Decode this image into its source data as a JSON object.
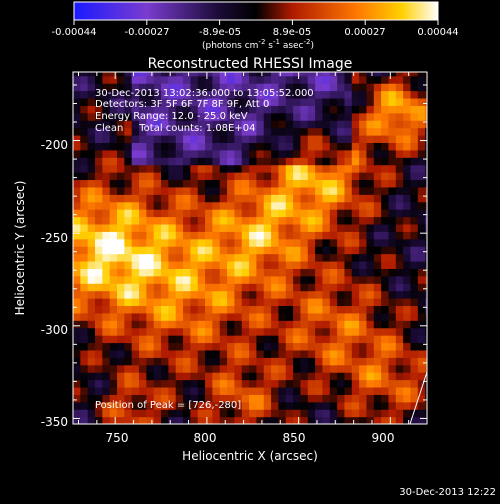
{
  "colorbar": {
    "ticks": [
      "-0.00044",
      "-0.00027",
      "-8.9e-05",
      "8.9e-05",
      "0.00027",
      "0.00044"
    ],
    "unit_main": "(photons cm",
    "unit_sup1": "-2",
    "unit_mid1": " s",
    "unit_sup2": "-1",
    "unit_mid2": " asec",
    "unit_sup3": "-2",
    "unit_end": ")"
  },
  "chart_data": {
    "type": "heatmap",
    "title": "Reconstructed RHESSI Image",
    "xlabel": "Heliocentric X (arcsec)",
    "ylabel": "Heliocentric Y (arcsec)",
    "x_ticks": [
      "750",
      "800",
      "850",
      "900"
    ],
    "y_ticks": [
      "-200",
      "-250",
      "-300",
      "-350"
    ],
    "xlim": [
      727,
      920
    ],
    "ylim": [
      -353,
      -163
    ],
    "clim": [
      -0.00044,
      0.00044
    ],
    "colormap": "blue-purple-black-red-orange-yellow-white",
    "annotations": {
      "time_range": "30-Dec-2013 13:02:36.000 to 13:05:52.000",
      "detectors": "Detectors: 3F 5F 6F 7F 8F 9F, Att 0",
      "energy_range": "Energy Range: 12.0 - 25.0 keV",
      "clean": "Clean     Total counts: 1.08E+04",
      "peak_position": "Position of Peak = [726,-280]"
    },
    "peak_position": [
      726,
      -280
    ]
  },
  "footer": {
    "timestamp": "30-Dec-2013 12:22"
  },
  "colors": {
    "axis": "#ffffff",
    "background": "#000000"
  }
}
